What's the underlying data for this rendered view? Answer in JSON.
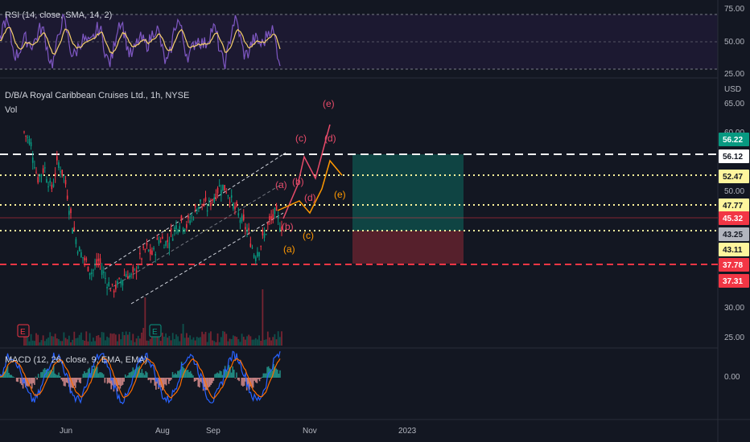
{
  "rsi": {
    "title": "RSI (14, close, SMA, 14, 2)",
    "ticks": [
      "75.00",
      "50.00",
      "25.00"
    ]
  },
  "main": {
    "title": "D/B/A Royal Caribbean Cruises Ltd., 1h, NYSE",
    "vol_label": "Vol",
    "currency": "USD",
    "price_ticks": [
      "65.00",
      "60.00",
      "50.00",
      "30.00",
      "25.00"
    ],
    "price_tags": [
      {
        "text": "56.22",
        "bg": "#089981",
        "fg": "#ffffff"
      },
      {
        "text": "56.12",
        "bg": "#ffffff",
        "fg": "#131722"
      },
      {
        "text": "52.47",
        "bg": "#fff59d",
        "fg": "#131722"
      },
      {
        "text": "47.77",
        "bg": "#fff59d",
        "fg": "#131722"
      },
      {
        "text": "45.32",
        "bg": "#f23645",
        "fg": "#ffffff"
      },
      {
        "text": "43.25",
        "bg": "#b2b5be",
        "fg": "#131722"
      },
      {
        "text": "43.11",
        "bg": "#fff59d",
        "fg": "#131722"
      },
      {
        "text": "37.78",
        "bg": "#f23645",
        "fg": "#ffffff"
      },
      {
        "text": "37.31",
        "bg": "#f23645",
        "fg": "#ffffff"
      }
    ],
    "wave_labels_red": [
      "(e)",
      "(c)",
      "(d)",
      "(a)",
      "(b)",
      "(b)",
      "(d)"
    ],
    "wave_labels_orange": [
      "(e)",
      "(c)",
      "(a)"
    ],
    "earnings_marker": "E"
  },
  "macd": {
    "title": "MACD (12, 26, close, 9, EMA, EMA)",
    "ticks": [
      "0.00"
    ]
  },
  "time_axis": [
    "Jun",
    "Aug",
    "Sep",
    "Nov",
    "2023"
  ],
  "colors": {
    "background": "#131722",
    "up": "#089981",
    "down": "#f23645",
    "rsi_line": "#7e57c2",
    "rsi_ma": "#f7d06b",
    "dashed_white": "#ffffff",
    "dotted_yellow": "#fff59d",
    "wave_red": "#e84b6a",
    "wave_orange": "#ff9800"
  },
  "chart_data": {
    "type": "candlestick",
    "symbol": "RCL",
    "y_range": [
      25,
      67
    ],
    "levels": [
      {
        "value": 56.12,
        "style": "dashed",
        "color": "#ffffff"
      },
      {
        "value": 52.47,
        "style": "dotted",
        "color": "#fff59d"
      },
      {
        "value": 47.77,
        "style": "dotted",
        "color": "#fff59d"
      },
      {
        "value": 43.11,
        "style": "dotted",
        "color": "#fff59d"
      },
      {
        "value": 37.78,
        "style": "dashed",
        "color": "#f23645"
      }
    ],
    "position": {
      "entry": 43.25,
      "target": 56.22,
      "stop": 37.78
    },
    "approx_closes": [
      60,
      58,
      52,
      54,
      50,
      55,
      52,
      45,
      40,
      38,
      36,
      38,
      35,
      33,
      34,
      36,
      35,
      38,
      40,
      39,
      42,
      41,
      43,
      45,
      44,
      46,
      48,
      47,
      49,
      51,
      50,
      47,
      45,
      43,
      39,
      41,
      44,
      46,
      44
    ]
  }
}
